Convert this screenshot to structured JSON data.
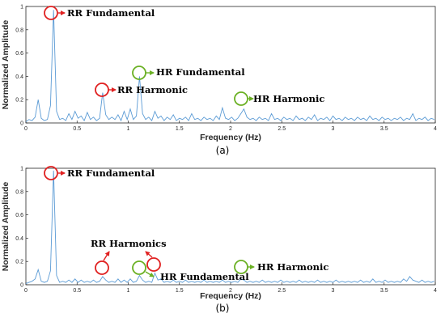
{
  "chart_data": [
    {
      "type": "line",
      "panel_label": "(a)",
      "xlabel": "Frequency (Hz)",
      "ylabel": "Normalized Amplitude",
      "xlim": [
        0,
        4
      ],
      "ylim": [
        0,
        1
      ],
      "xticks": [
        "0",
        "0.5",
        "1",
        "1.5",
        "2",
        "2.5",
        "3",
        "3.5",
        "4"
      ],
      "yticks": [
        "0",
        "0.2",
        "0.4",
        "0.6",
        "0.8",
        "1"
      ],
      "grid": false,
      "line_color": "#5b9bd5",
      "series": [
        {
          "x": [
            0.0,
            0.03,
            0.06,
            0.09,
            0.12,
            0.15,
            0.18,
            0.21,
            0.24,
            0.27,
            0.3,
            0.33,
            0.36,
            0.39,
            0.42,
            0.45,
            0.48,
            0.51,
            0.54,
            0.57,
            0.6,
            0.63,
            0.66,
            0.69,
            0.72,
            0.75,
            0.78,
            0.81,
            0.84,
            0.87,
            0.9,
            0.93,
            0.96,
            0.99,
            1.02,
            1.05,
            1.08,
            1.11,
            1.14,
            1.17,
            1.2,
            1.23,
            1.26,
            1.29,
            1.32,
            1.35,
            1.38,
            1.41,
            1.44,
            1.47,
            1.5,
            1.53,
            1.56,
            1.59,
            1.62,
            1.65,
            1.68,
            1.71,
            1.74,
            1.77,
            1.8,
            1.83,
            1.86,
            1.89,
            1.92,
            1.95,
            1.98,
            2.01,
            2.04,
            2.07,
            2.1,
            2.13,
            2.16,
            2.19,
            2.22,
            2.25,
            2.28,
            2.31,
            2.34,
            2.37,
            2.4,
            2.43,
            2.46,
            2.49,
            2.52,
            2.55,
            2.58,
            2.61,
            2.64,
            2.67,
            2.7,
            2.73,
            2.76,
            2.79,
            2.82,
            2.85,
            2.88,
            2.91,
            2.94,
            2.97,
            3.0,
            3.03,
            3.06,
            3.09,
            3.12,
            3.15,
            3.18,
            3.21,
            3.24,
            3.27,
            3.3,
            3.33,
            3.36,
            3.39,
            3.42,
            3.45,
            3.48,
            3.51,
            3.54,
            3.57,
            3.6,
            3.63,
            3.66,
            3.69,
            3.72,
            3.75,
            3.78,
            3.81,
            3.84,
            3.87,
            3.9,
            3.93,
            3.96,
            3.99
          ],
          "y": [
            0.01,
            0.03,
            0.02,
            0.05,
            0.2,
            0.04,
            0.02,
            0.03,
            0.15,
            0.97,
            0.1,
            0.03,
            0.04,
            0.02,
            0.08,
            0.03,
            0.1,
            0.04,
            0.06,
            0.02,
            0.09,
            0.03,
            0.05,
            0.02,
            0.04,
            0.26,
            0.07,
            0.03,
            0.05,
            0.03,
            0.07,
            0.02,
            0.1,
            0.03,
            0.12,
            0.03,
            0.06,
            0.4,
            0.08,
            0.03,
            0.05,
            0.02,
            0.1,
            0.04,
            0.06,
            0.02,
            0.05,
            0.03,
            0.07,
            0.02,
            0.04,
            0.03,
            0.05,
            0.02,
            0.08,
            0.03,
            0.04,
            0.02,
            0.05,
            0.03,
            0.04,
            0.02,
            0.06,
            0.03,
            0.13,
            0.04,
            0.03,
            0.05,
            0.02,
            0.04,
            0.08,
            0.12,
            0.05,
            0.03,
            0.04,
            0.02,
            0.05,
            0.03,
            0.04,
            0.02,
            0.08,
            0.03,
            0.04,
            0.02,
            0.05,
            0.03,
            0.04,
            0.02,
            0.06,
            0.03,
            0.04,
            0.02,
            0.05,
            0.03,
            0.07,
            0.02,
            0.04,
            0.03,
            0.05,
            0.02,
            0.06,
            0.03,
            0.04,
            0.02,
            0.05,
            0.03,
            0.04,
            0.02,
            0.05,
            0.03,
            0.04,
            0.02,
            0.06,
            0.03,
            0.04,
            0.02,
            0.05,
            0.03,
            0.04,
            0.02,
            0.04,
            0.03,
            0.05,
            0.02,
            0.04,
            0.03,
            0.08,
            0.02,
            0.04,
            0.03,
            0.05,
            0.02,
            0.04,
            0.03
          ]
        }
      ],
      "annotations": [
        {
          "text": "RR Fundamental",
          "x": 0.24,
          "y": 0.97,
          "color": "#e02020"
        },
        {
          "text": "RR Harmonic",
          "x": 0.74,
          "y": 0.28,
          "color": "#e02020"
        },
        {
          "text": "HR Fundamental",
          "x": 1.1,
          "y": 0.44,
          "color": "#6ab023"
        },
        {
          "text": "HR Harmonic",
          "x": 2.1,
          "y": 0.2,
          "color": "#6ab023"
        }
      ]
    },
    {
      "type": "line",
      "panel_label": "(b)",
      "xlabel": "Frequency (Hz)",
      "ylabel": "Normalized Amplitude",
      "xlim": [
        0,
        4
      ],
      "ylim": [
        0,
        1
      ],
      "xticks": [
        "0",
        "0.5",
        "1",
        "1.5",
        "2",
        "2.5",
        "3",
        "3.5",
        "4"
      ],
      "yticks": [
        "0",
        "0.2",
        "0.4",
        "0.6",
        "0.8",
        "1"
      ],
      "grid": false,
      "line_color": "#5b9bd5",
      "series": [
        {
          "x": [
            0.0,
            0.03,
            0.06,
            0.09,
            0.12,
            0.15,
            0.18,
            0.21,
            0.24,
            0.27,
            0.3,
            0.33,
            0.36,
            0.39,
            0.42,
            0.45,
            0.48,
            0.51,
            0.54,
            0.57,
            0.6,
            0.63,
            0.66,
            0.69,
            0.72,
            0.75,
            0.78,
            0.81,
            0.84,
            0.87,
            0.9,
            0.93,
            0.96,
            0.99,
            1.02,
            1.05,
            1.08,
            1.11,
            1.14,
            1.17,
            1.2,
            1.23,
            1.26,
            1.29,
            1.32,
            1.35,
            1.38,
            1.41,
            1.44,
            1.47,
            1.5,
            1.53,
            1.56,
            1.59,
            1.62,
            1.65,
            1.68,
            1.71,
            1.74,
            1.77,
            1.8,
            1.83,
            1.86,
            1.89,
            1.92,
            1.95,
            1.98,
            2.01,
            2.04,
            2.07,
            2.1,
            2.13,
            2.16,
            2.19,
            2.22,
            2.25,
            2.28,
            2.31,
            2.34,
            2.37,
            2.4,
            2.43,
            2.46,
            2.49,
            2.52,
            2.55,
            2.58,
            2.61,
            2.64,
            2.67,
            2.7,
            2.73,
            2.76,
            2.79,
            2.82,
            2.85,
            2.88,
            2.91,
            2.94,
            2.97,
            3.0,
            3.03,
            3.06,
            3.09,
            3.12,
            3.15,
            3.18,
            3.21,
            3.24,
            3.27,
            3.3,
            3.33,
            3.36,
            3.39,
            3.42,
            3.45,
            3.48,
            3.51,
            3.54,
            3.57,
            3.6,
            3.63,
            3.66,
            3.69,
            3.72,
            3.75,
            3.78,
            3.81,
            3.84,
            3.87,
            3.9,
            3.93,
            3.96,
            3.99
          ],
          "y": [
            0.01,
            0.02,
            0.03,
            0.05,
            0.13,
            0.03,
            0.02,
            0.03,
            0.12,
            0.98,
            0.08,
            0.02,
            0.03,
            0.02,
            0.04,
            0.02,
            0.05,
            0.02,
            0.04,
            0.02,
            0.03,
            0.02,
            0.04,
            0.02,
            0.03,
            0.07,
            0.04,
            0.02,
            0.03,
            0.02,
            0.05,
            0.02,
            0.04,
            0.02,
            0.05,
            0.02,
            0.03,
            0.08,
            0.04,
            0.02,
            0.03,
            0.02,
            0.1,
            0.04,
            0.05,
            0.02,
            0.03,
            0.02,
            0.04,
            0.02,
            0.03,
            0.02,
            0.04,
            0.02,
            0.03,
            0.02,
            0.03,
            0.02,
            0.04,
            0.02,
            0.03,
            0.02,
            0.03,
            0.02,
            0.04,
            0.02,
            0.03,
            0.02,
            0.03,
            0.02,
            0.05,
            0.04,
            0.02,
            0.03,
            0.02,
            0.03,
            0.02,
            0.04,
            0.02,
            0.03,
            0.02,
            0.03,
            0.02,
            0.04,
            0.02,
            0.03,
            0.02,
            0.03,
            0.02,
            0.04,
            0.02,
            0.03,
            0.02,
            0.03,
            0.02,
            0.04,
            0.02,
            0.03,
            0.02,
            0.03,
            0.02,
            0.04,
            0.02,
            0.03,
            0.02,
            0.03,
            0.02,
            0.03,
            0.02,
            0.04,
            0.02,
            0.03,
            0.02,
            0.05,
            0.02,
            0.03,
            0.02,
            0.04,
            0.02,
            0.03,
            0.02,
            0.03,
            0.02,
            0.05,
            0.03,
            0.07,
            0.04,
            0.03,
            0.02,
            0.04,
            0.02,
            0.03,
            0.02,
            0.03
          ]
        }
      ],
      "annotations": [
        {
          "text": "RR Fundamental",
          "x": 0.24,
          "y": 0.97,
          "color": "#e02020"
        },
        {
          "text": "RR Harmonics",
          "x": 0.74,
          "y": 0.14,
          "color": "#e02020"
        },
        {
          "text": "HR Fundamental",
          "x": 1.11,
          "y": 0.13,
          "color": "#6ab023"
        },
        {
          "text": "HR Harmonic",
          "x": 2.1,
          "y": 0.14,
          "color": "#6ab023"
        }
      ]
    }
  ]
}
